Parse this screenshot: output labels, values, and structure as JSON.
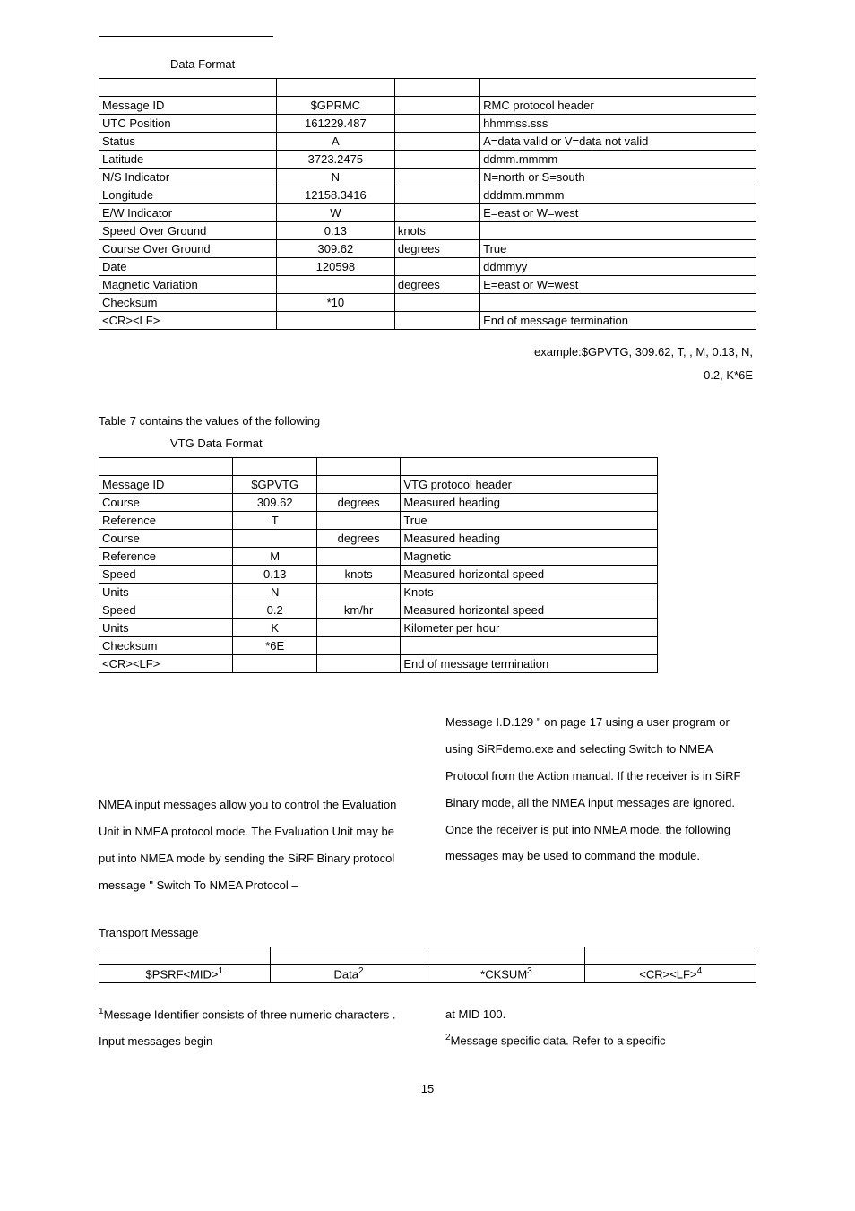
{
  "top": {
    "caption": "Data Format"
  },
  "rmc": {
    "headers": [
      "",
      "",
      "",
      ""
    ],
    "rows": [
      [
        "Message ID",
        "$GPRMC",
        "",
        "RMC protocol header"
      ],
      [
        "UTC Position",
        "161229.487",
        "",
        "hhmmss.sss"
      ],
      [
        "Status",
        "A",
        "",
        "A=data valid or V=data not valid"
      ],
      [
        "Latitude",
        "3723.2475",
        "",
        "ddmm.mmmm"
      ],
      [
        "N/S Indicator",
        "N",
        "",
        "N=north or S=south"
      ],
      [
        "Longitude",
        "12158.3416",
        "",
        "dddmm.mmmm"
      ],
      [
        "E/W Indicator",
        "W",
        "",
        "E=east or W=west"
      ],
      [
        "Speed Over Ground",
        "0.13",
        "knots",
        ""
      ],
      [
        "Course Over Ground",
        "309.62",
        "degrees",
        "True"
      ],
      [
        "Date",
        "120598",
        "",
        "ddmmyy"
      ],
      [
        "Magnetic Variation",
        "",
        "degrees",
        "E=east or W=west"
      ],
      [
        "Checksum",
        "*10",
        "",
        ""
      ],
      [
        "<CR><LF>",
        "",
        "",
        "End of message termination"
      ]
    ],
    "col_align": [
      "l",
      "c",
      "l",
      "l"
    ],
    "col_widths": [
      "27%",
      "18%",
      "13%",
      "42%"
    ]
  },
  "example": {
    "line1": "example:$GPVTG, 309.62, T,   , M, 0.13, N,",
    "line2": "0.2, K*6E"
  },
  "vtg_intro": "Table 7 contains the values of the following",
  "vtg_caption": "VTG Data Format",
  "vtg": {
    "rows": [
      [
        "Message ID",
        "$GPVTG",
        "",
        "VTG protocol header"
      ],
      [
        "Course",
        "309.62",
        "degrees",
        "Measured heading"
      ],
      [
        "Reference",
        "T",
        "",
        "True"
      ],
      [
        "Course",
        "",
        "degrees",
        "Measured heading"
      ],
      [
        "Reference",
        "M",
        "",
        "Magnetic"
      ],
      [
        "Speed",
        "0.13",
        "knots",
        "Measured horizontal speed"
      ],
      [
        "Units",
        "N",
        "",
        "Knots"
      ],
      [
        "Speed",
        "0.2",
        "km/hr",
        "Measured horizontal speed"
      ],
      [
        "Units",
        "K",
        "",
        "Kilometer per hour"
      ],
      [
        "Checksum",
        "*6E",
        "",
        ""
      ],
      [
        "<CR><LF>",
        "",
        "",
        "End of message termination"
      ]
    ],
    "col_align": [
      "l",
      "c",
      "c",
      "l"
    ],
    "col_widths": [
      "24%",
      "15%",
      "15%",
      "46%"
    ]
  },
  "body": {
    "left": "NMEA input messages allow you to control the Evaluation Unit in NMEA protocol mode. The Evaluation Unit may be put into NMEA mode by sending the SiRF Binary protocol message \" Switch To NMEA Protocol –",
    "right": "Message I.D.129 \" on page 17 using a user program or using SiRFdemo.exe and selecting Switch to NMEA Protocol from the Action manual. If the receiver is in SiRF Binary mode, all the NMEA input messages are ignored. Once the receiver is put into NMEA mode, the following messages may be used to command the module."
  },
  "transport": {
    "title": "Transport Message",
    "headers": [
      "",
      "",
      "",
      ""
    ],
    "row": [
      "$PSRF<MID>",
      "Data",
      "*CKSUM",
      "<CR><LF>"
    ],
    "sups": [
      "1",
      "2",
      "3",
      "4"
    ],
    "col_widths": [
      "26%",
      "24%",
      "24%",
      "26%"
    ]
  },
  "footnotes": {
    "left_pre": "1",
    "left": "Message Identifier consists of three numeric characters . Input messages begin",
    "right_top": "at MID 100.",
    "right_pre": "2",
    "right": "Message specific data. Refer to a specific"
  },
  "page_number": "15"
}
